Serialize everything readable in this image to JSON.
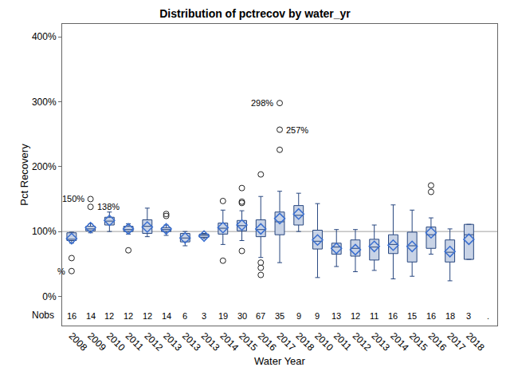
{
  "chart_data": {
    "type": "box",
    "title": "Distribution of pctrecov by water_yr",
    "x_label": "Water Year",
    "y_label": "Pct Recovery",
    "categories": [
      "2008",
      "2009",
      "2010",
      "2011",
      "2012",
      "2013",
      "2013",
      "2013",
      "2014",
      "2015",
      "2016",
      "2017",
      "2018",
      "2010",
      "2011",
      "2012",
      "2013",
      "2014",
      "2015",
      "2016",
      "2017",
      "2018",
      null
    ],
    "q1": [
      86,
      101,
      110,
      100,
      97,
      100,
      84,
      91,
      96,
      101,
      92,
      95,
      110,
      73,
      65,
      62,
      56,
      66,
      53,
      74,
      53,
      57,
      null
    ],
    "median": [
      88,
      104,
      116,
      103,
      108,
      103,
      90,
      94,
      105,
      109,
      103,
      115,
      125,
      85,
      76,
      74,
      76,
      80,
      78,
      95,
      68,
      95,
      null
    ],
    "q3": [
      98,
      108,
      122,
      108,
      118,
      106,
      97,
      96,
      113,
      117,
      118,
      130,
      140,
      102,
      82,
      87,
      88,
      95,
      99,
      107,
      87,
      111,
      null
    ],
    "lowerfence": [
      82,
      98,
      100,
      96,
      92,
      94,
      78,
      89,
      80,
      86,
      60,
      52,
      100,
      29,
      46,
      38,
      40,
      27,
      31,
      65,
      24,
      57,
      null
    ],
    "upperfence": [
      99,
      112,
      130,
      112,
      136,
      110,
      100,
      97,
      133,
      132,
      154,
      162,
      159,
      143,
      103,
      103,
      110,
      141,
      133,
      121,
      104,
      111,
      null
    ],
    "mean": [
      89,
      106,
      117,
      104,
      107,
      104,
      90,
      93,
      106,
      110,
      104,
      120,
      127,
      87,
      74,
      72,
      77,
      79,
      77,
      98,
      69,
      88,
      null
    ],
    "outliers": [
      [
        59,
        39
      ],
      [
        150,
        138
      ],
      [],
      [
        71
      ],
      [],
      [
        124,
        127
      ],
      [],
      [],
      [
        147,
        55
      ],
      [
        167,
        146,
        144,
        70
      ],
      [
        188,
        52,
        44,
        33
      ],
      [
        298,
        257,
        226
      ],
      [],
      [],
      [],
      [],
      [],
      [],
      [],
      [
        171,
        161
      ],
      [],
      [],
      []
    ],
    "nobs_label": "Nobs",
    "nobs": [
      16,
      14,
      12,
      12,
      12,
      14,
      6,
      3,
      19,
      30,
      67,
      35,
      9,
      9,
      13,
      12,
      11,
      16,
      15,
      16,
      18,
      3,
      "."
    ],
    "annotations": [
      {
        "x": 0,
        "y": 39,
        "text": "%"
      },
      {
        "x": 1,
        "y": 150,
        "text": "150%"
      },
      {
        "x": 1,
        "y": 138,
        "text": "138%"
      },
      {
        "x": 11,
        "y": 298,
        "text": "298%"
      },
      {
        "x": 11,
        "y": 257,
        "text": "257%"
      }
    ],
    "refline": 100,
    "ylim": [
      -45,
      420
    ],
    "yticks": [
      {
        "value": 0,
        "label": "0%"
      },
      {
        "value": 100,
        "label": "100%"
      },
      {
        "value": 200,
        "label": "200%"
      },
      {
        "value": 300,
        "label": "300%"
      },
      {
        "value": 400,
        "label": "400%"
      }
    ],
    "grid": false,
    "color": "#c8d3e6",
    "marker": "diamond"
  }
}
